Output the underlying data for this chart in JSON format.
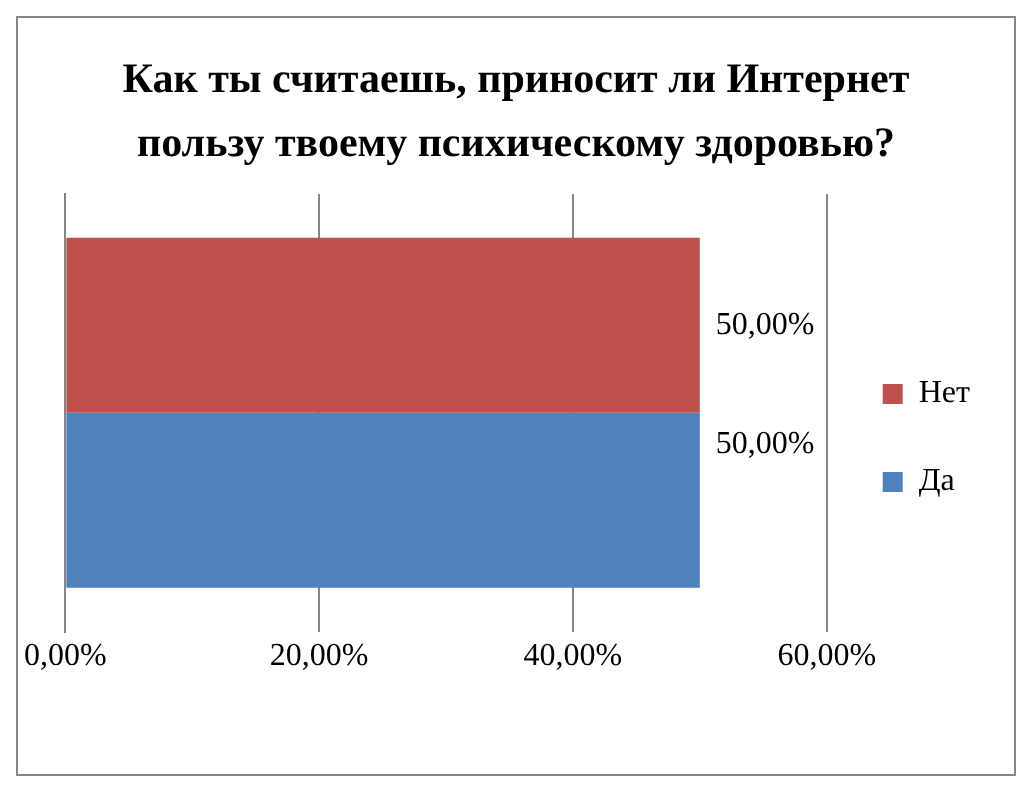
{
  "chart_data": {
    "type": "bar",
    "orientation": "horizontal",
    "title": "Как ты считаешь, приносит ли Интернет пользу твоему психическому здоровью?",
    "categories": [
      null
    ],
    "series": [
      {
        "name": "Нет",
        "color": "#c0504d",
        "values": [
          50
        ],
        "value_labels": [
          "50,00%"
        ]
      },
      {
        "name": "Да",
        "color": "#4f81bd",
        "values": [
          50
        ],
        "value_labels": [
          "50,00%"
        ]
      }
    ],
    "xlim": [
      0,
      60
    ],
    "xticks": [
      {
        "value": 0,
        "label": "0,00%"
      },
      {
        "value": 20,
        "label": "20,00%"
      },
      {
        "value": 40,
        "label": "40,00%"
      },
      {
        "value": 60,
        "label": "60,00%"
      }
    ],
    "grid": "x",
    "legend": "right"
  }
}
